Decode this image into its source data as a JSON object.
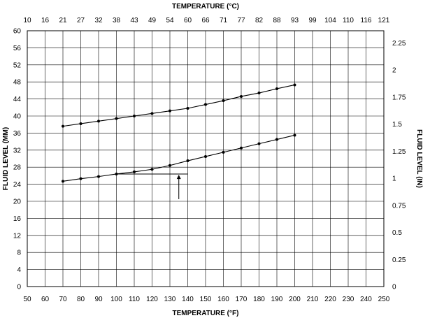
{
  "chart_data": {
    "type": "line",
    "x_axis": {
      "label": "TEMPERATURE (°F)",
      "min": 50,
      "max": 250,
      "step": 10,
      "ticks": [
        "50",
        "60",
        "70",
        "80",
        "90",
        "100",
        "110",
        "120",
        "130",
        "140",
        "150",
        "160",
        "170",
        "180",
        "190",
        "200",
        "210",
        "220",
        "230",
        "240",
        "250"
      ]
    },
    "x2_axis": {
      "label": "TEMPERATURE (°C)",
      "ticks": [
        "10",
        "16",
        "21",
        "27",
        "32",
        "38",
        "43",
        "49",
        "54",
        "60",
        "66",
        "71",
        "77",
        "82",
        "88",
        "93",
        "99",
        "104",
        "110",
        "116",
        "121"
      ]
    },
    "y_axis": {
      "label": "FLUID LEVEL (MM)",
      "min": 0,
      "max": 60,
      "step": 4,
      "ticks": [
        "0",
        "4",
        "8",
        "12",
        "16",
        "20",
        "24",
        "28",
        "32",
        "36",
        "40",
        "44",
        "48",
        "52",
        "56",
        "60"
      ]
    },
    "y2_axis": {
      "label": "FLUID LEVEL (IN)",
      "min": 0,
      "max": 2.362,
      "ticks": [
        {
          "value": 0,
          "label": "0"
        },
        {
          "value": 0.25,
          "label": "0.25"
        },
        {
          "value": 0.5,
          "label": "0.5"
        },
        {
          "value": 0.75,
          "label": "0.75"
        },
        {
          "value": 1,
          "label": "1"
        },
        {
          "value": 1.25,
          "label": "1.25"
        },
        {
          "value": 1.5,
          "label": "1.5"
        },
        {
          "value": 1.75,
          "label": "1.75"
        },
        {
          "value": 2,
          "label": "2"
        },
        {
          "value": 2.25,
          "label": "2.25"
        }
      ]
    },
    "grid": true,
    "series": [
      {
        "x": [
          70,
          80,
          90,
          100,
          110,
          120,
          130,
          140,
          150,
          160,
          170,
          180,
          190,
          200
        ],
        "y": [
          37.6,
          38.2,
          38.8,
          39.4,
          40.0,
          40.6,
          41.2,
          41.8,
          42.7,
          43.6,
          44.6,
          45.4,
          46.4,
          47.3
        ]
      },
      {
        "x": [
          70,
          80,
          90,
          100,
          110,
          120,
          130,
          140,
          150,
          160,
          170,
          180,
          190,
          200
        ],
        "y": [
          24.7,
          25.3,
          25.8,
          26.4,
          26.9,
          27.5,
          28.4,
          29.5,
          30.5,
          31.5,
          32.5,
          33.5,
          34.5,
          35.5
        ]
      }
    ],
    "annotation": {
      "line": {
        "x_start": 100,
        "x_end": 140,
        "y": 26.4
      },
      "arrow": {
        "x": 135,
        "y_from": 20.5,
        "y_to": 26.2
      }
    },
    "colors": {
      "line": "#000000",
      "grid": "#000000",
      "background": "#ffffff"
    }
  }
}
